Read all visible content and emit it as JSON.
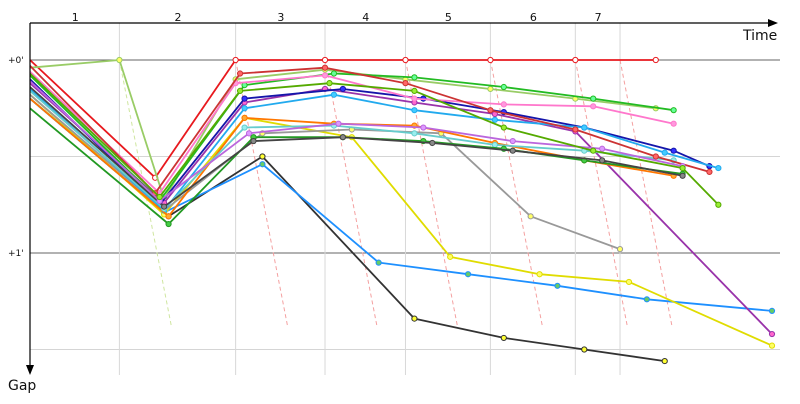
{
  "chart_data": {
    "type": "line",
    "xlabel": "Time",
    "ylabel": "Gap",
    "lap_labels": [
      "1",
      "2",
      "3",
      "4",
      "5",
      "6",
      "7"
    ],
    "y_ticks": [
      {
        "value": 0,
        "label": "+0'"
      },
      {
        "value": 1,
        "label": "+1'"
      }
    ],
    "xlim": [
      0,
      8.3
    ],
    "ylim": [
      -0.1,
      1.6
    ],
    "grid": true,
    "lap_boundaries": [
      1.0,
      2.3,
      3.3,
      4.2,
      5.15,
      6.1,
      6.6
    ],
    "series": [
      {
        "color": "#e8191e",
        "marker": "#ffffff",
        "points": [
          [
            0,
            0
          ],
          [
            1.4,
            0.61
          ],
          [
            2.3,
            0
          ],
          [
            3.3,
            0
          ],
          [
            4.2,
            0
          ],
          [
            5.15,
            0
          ],
          [
            6.1,
            0
          ],
          [
            7.0,
            0
          ]
        ]
      },
      {
        "color": "#99cc66",
        "marker": "#ffff66",
        "points": [
          [
            0,
            0.04
          ],
          [
            1.0,
            0
          ],
          [
            1.5,
            0.72
          ],
          [
            2.3,
            0.1
          ],
          [
            3.3,
            0.05
          ],
          [
            4.2,
            0.1
          ],
          [
            5.15,
            0.15
          ],
          [
            6.1,
            0.2
          ],
          [
            7.0,
            0.25
          ]
        ]
      },
      {
        "color": "#333333",
        "marker": "#ffff33",
        "points": [
          [
            0,
            0.2
          ],
          [
            1.55,
            0.81
          ],
          [
            2.6,
            0.5
          ],
          [
            4.3,
            1.34
          ],
          [
            5.3,
            1.44
          ],
          [
            6.2,
            1.5
          ],
          [
            7.1,
            1.56
          ]
        ]
      },
      {
        "color": "#1e90ff",
        "marker": "#66cc66",
        "points": [
          [
            0,
            0.2
          ],
          [
            1.5,
            0.79
          ],
          [
            2.6,
            0.54
          ],
          [
            3.9,
            1.05
          ],
          [
            4.9,
            1.11
          ],
          [
            5.9,
            1.17
          ],
          [
            6.9,
            1.24
          ],
          [
            8.3,
            1.3
          ]
        ]
      },
      {
        "color": "#e0dc00",
        "marker": "#ffff66",
        "points": [
          [
            0,
            0.18
          ],
          [
            1.5,
            0.8
          ],
          [
            2.4,
            0.3
          ],
          [
            3.6,
            0.4
          ],
          [
            4.7,
            1.02
          ],
          [
            5.7,
            1.11
          ],
          [
            6.7,
            1.15
          ],
          [
            8.3,
            1.48
          ]
        ]
      },
      {
        "color": "#999999",
        "marker": "#ffff66",
        "points": [
          [
            0,
            0.18
          ],
          [
            1.5,
            0.78
          ],
          [
            2.6,
            0.38
          ],
          [
            3.6,
            0.36
          ],
          [
            4.6,
            0.38
          ],
          [
            5.6,
            0.81
          ],
          [
            6.6,
            0.98
          ]
        ]
      },
      {
        "color": "#9933aa",
        "marker": "#ff66cc",
        "points": [
          [
            0,
            0.12
          ],
          [
            1.5,
            0.74
          ],
          [
            2.4,
            0.22
          ],
          [
            3.3,
            0.15
          ],
          [
            4.3,
            0.22
          ],
          [
            5.2,
            0.28
          ],
          [
            6.1,
            0.37
          ],
          [
            8.3,
            1.42
          ]
        ]
      },
      {
        "color": "#22bb22",
        "marker": "#66ff99",
        "points": [
          [
            0,
            0.08
          ],
          [
            1.45,
            0.73
          ],
          [
            2.4,
            0.13
          ],
          [
            3.4,
            0.07
          ],
          [
            4.3,
            0.09
          ],
          [
            5.3,
            0.14
          ],
          [
            6.3,
            0.2
          ],
          [
            7.2,
            0.26
          ]
        ]
      },
      {
        "color": "#1515aa",
        "marker": "#3333ff",
        "points": [
          [
            0,
            0.1
          ],
          [
            1.45,
            0.75
          ],
          [
            2.4,
            0.2
          ],
          [
            3.5,
            0.15
          ],
          [
            4.4,
            0.2
          ],
          [
            5.3,
            0.27
          ],
          [
            6.2,
            0.35
          ],
          [
            7.2,
            0.47
          ],
          [
            7.6,
            0.55
          ]
        ]
      },
      {
        "color": "#ff77cc",
        "marker": "#ff99dd",
        "points": [
          [
            0,
            0.06
          ],
          [
            1.45,
            0.69
          ],
          [
            2.3,
            0.12
          ],
          [
            3.3,
            0.08
          ],
          [
            4.3,
            0.2
          ],
          [
            5.3,
            0.23
          ],
          [
            6.3,
            0.24
          ],
          [
            7.2,
            0.33
          ]
        ]
      },
      {
        "color": "#22aaee",
        "marker": "#44ccff",
        "points": [
          [
            0,
            0.15
          ],
          [
            1.5,
            0.78
          ],
          [
            2.4,
            0.25
          ],
          [
            3.4,
            0.18
          ],
          [
            4.3,
            0.26
          ],
          [
            5.2,
            0.31
          ],
          [
            6.2,
            0.35
          ],
          [
            7.1,
            0.48
          ],
          [
            7.7,
            0.56
          ]
        ]
      },
      {
        "color": "#ff7700",
        "marker": "#ffaa33",
        "points": [
          [
            0,
            0.2
          ],
          [
            1.55,
            0.81
          ],
          [
            2.4,
            0.3
          ],
          [
            3.4,
            0.33
          ],
          [
            4.3,
            0.34
          ],
          [
            5.2,
            0.43
          ],
          [
            6.2,
            0.52
          ],
          [
            7.2,
            0.6
          ]
        ]
      },
      {
        "color": "#66cccc",
        "marker": "#99eeee",
        "points": [
          [
            0,
            0.16
          ],
          [
            1.5,
            0.77
          ],
          [
            2.4,
            0.35
          ],
          [
            3.4,
            0.34
          ],
          [
            4.3,
            0.38
          ],
          [
            5.2,
            0.44
          ],
          [
            6.2,
            0.47
          ],
          [
            7.2,
            0.52
          ]
        ]
      },
      {
        "color": "#229922",
        "marker": "#44cc44",
        "points": [
          [
            0,
            0.25
          ],
          [
            1.55,
            0.85
          ],
          [
            2.5,
            0.4
          ],
          [
            3.5,
            0.4
          ],
          [
            4.4,
            0.42
          ],
          [
            5.3,
            0.46
          ],
          [
            6.2,
            0.52
          ],
          [
            7.3,
            0.59
          ]
        ]
      },
      {
        "color": "#cc3333",
        "marker": "#ff6666",
        "points": [
          [
            0,
            0.03
          ],
          [
            1.4,
            0.69
          ],
          [
            2.35,
            0.07
          ],
          [
            3.3,
            0.04
          ],
          [
            4.2,
            0.12
          ],
          [
            5.15,
            0.26
          ],
          [
            6.1,
            0.36
          ],
          [
            7.0,
            0.5
          ],
          [
            7.6,
            0.58
          ]
        ]
      },
      {
        "color": "#444444",
        "marker": "#888888",
        "points": [
          [
            0,
            0.14
          ],
          [
            1.5,
            0.76
          ],
          [
            2.5,
            0.42
          ],
          [
            3.5,
            0.4
          ],
          [
            4.5,
            0.43
          ],
          [
            5.4,
            0.47
          ],
          [
            6.4,
            0.52
          ],
          [
            7.3,
            0.6
          ]
        ]
      },
      {
        "color": "#bb66dd",
        "marker": "#dd99ff",
        "points": [
          [
            0,
            0.11
          ],
          [
            1.45,
            0.73
          ],
          [
            2.45,
            0.38
          ],
          [
            3.45,
            0.33
          ],
          [
            4.4,
            0.35
          ],
          [
            5.4,
            0.42
          ],
          [
            6.4,
            0.46
          ],
          [
            7.3,
            0.55
          ]
        ]
      },
      {
        "color": "#55aa00",
        "marker": "#99ee33",
        "points": [
          [
            0,
            0.07
          ],
          [
            1.45,
            0.71
          ],
          [
            2.35,
            0.16
          ],
          [
            3.35,
            0.12
          ],
          [
            4.3,
            0.16
          ],
          [
            5.3,
            0.35
          ],
          [
            6.3,
            0.47
          ],
          [
            7.3,
            0.56
          ],
          [
            7.7,
            0.75
          ]
        ]
      }
    ]
  }
}
